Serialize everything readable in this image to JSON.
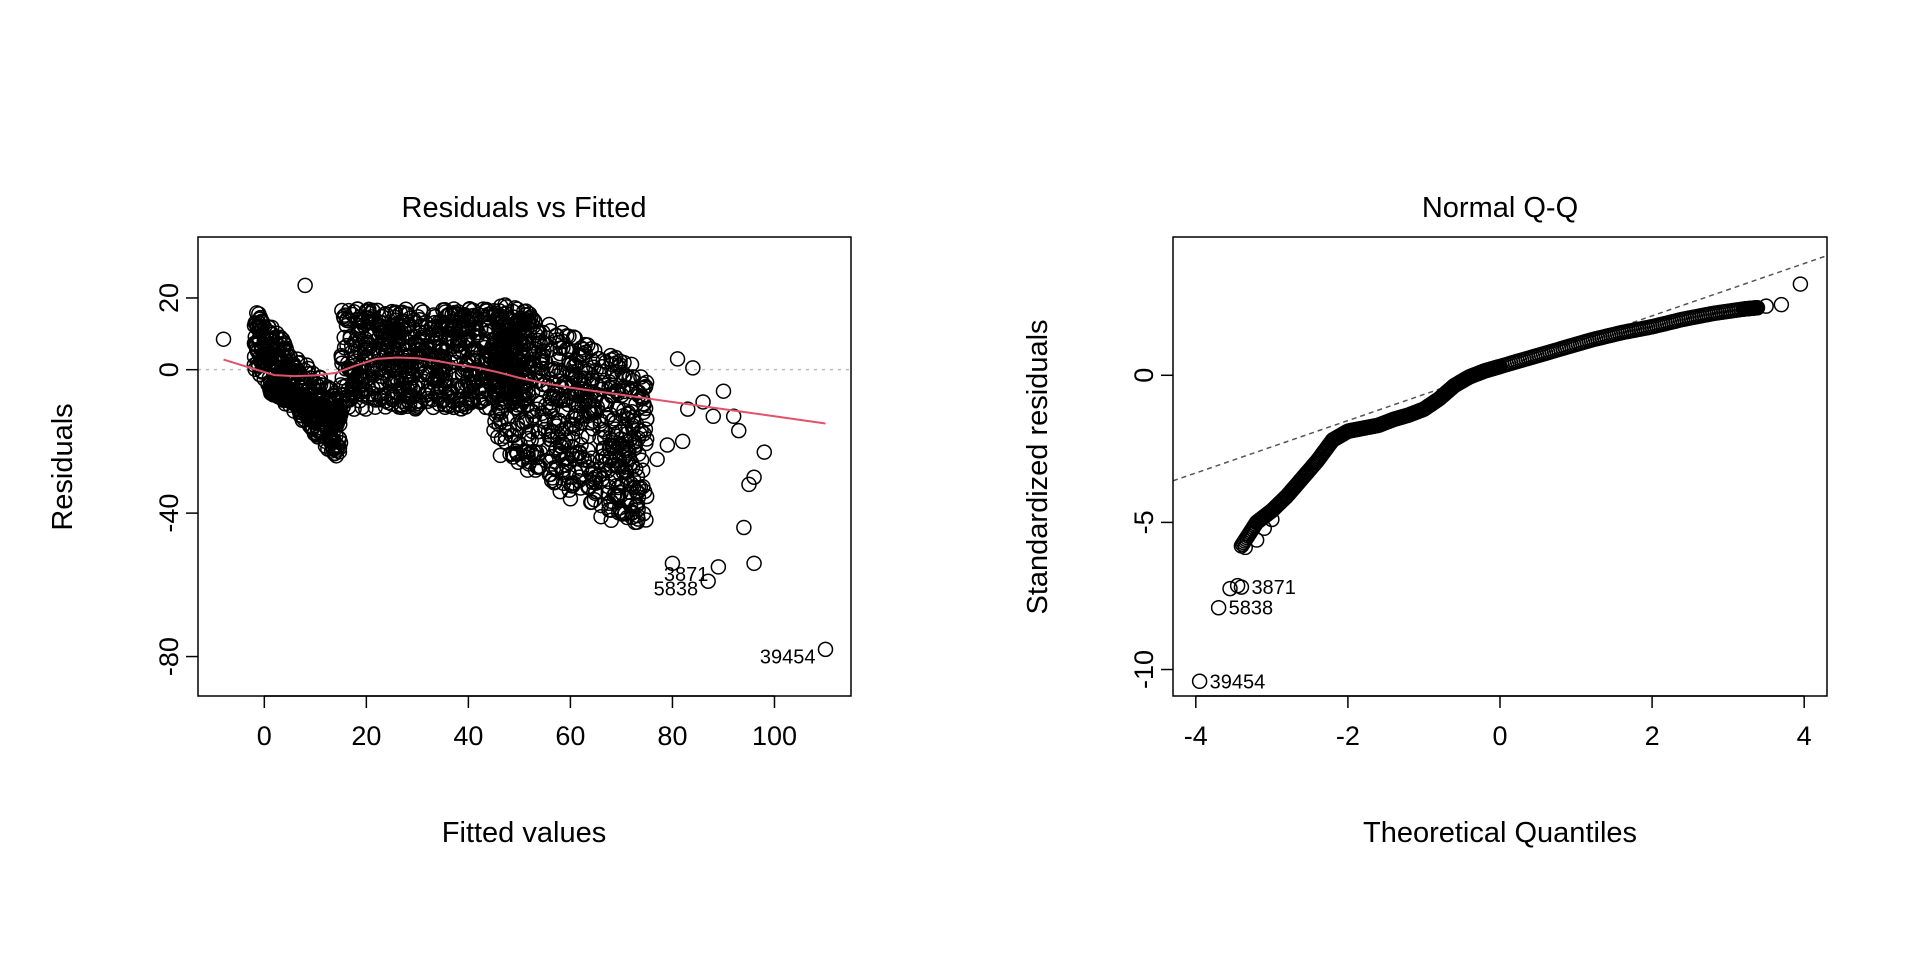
{
  "chart_data": [
    {
      "type": "scatter",
      "title": "Residuals vs Fitted",
      "xlabel": "Fitted values",
      "ylabel": "Residuals",
      "xlim": [
        -13,
        115
      ],
      "ylim": [
        -91,
        37
      ],
      "xticks": [
        0,
        20,
        40,
        60,
        80,
        100
      ],
      "yticks": [
        -80,
        -40,
        0,
        20
      ],
      "reference_line": {
        "y": 0,
        "style": "dotted",
        "color": "#bbbbbb"
      },
      "smoother": {
        "color": "#DF536B",
        "x": [
          -8,
          -2,
          2,
          6,
          10,
          14,
          18,
          22,
          26,
          30,
          34,
          38,
          42,
          46,
          50,
          55,
          60,
          65,
          70,
          80,
          90,
          100,
          110
        ],
        "y": [
          2.8,
          0.2,
          -1.5,
          -1.8,
          -1.6,
          -0.9,
          1.2,
          3.0,
          3.4,
          3.2,
          2.4,
          1.4,
          0.5,
          -0.8,
          -2.3,
          -3.8,
          -5.0,
          -6.0,
          -7.0,
          -9.0,
          -11.0,
          -13.0,
          -15.0
        ]
      },
      "labeled_points": [
        {
          "label": "39454",
          "x": 110,
          "y": -78
        },
        {
          "label": "3871",
          "x": 89,
          "y": -55
        },
        {
          "label": "5838",
          "x": 87,
          "y": -59
        }
      ],
      "outliers": [
        [
          -8,
          8.5
        ],
        [
          8,
          23.5
        ],
        [
          -1,
          12
        ],
        [
          81,
          3
        ],
        [
          84,
          0.5
        ],
        [
          90,
          -6
        ],
        [
          93,
          -17
        ],
        [
          96,
          -30
        ],
        [
          95,
          -32
        ],
        [
          98,
          -23
        ],
        [
          94,
          -44
        ],
        [
          96,
          -54
        ],
        [
          80,
          -54
        ],
        [
          82,
          -20
        ],
        [
          79,
          -21
        ],
        [
          83,
          -11
        ],
        [
          88,
          -13
        ],
        [
          92,
          -13
        ],
        [
          86,
          -9
        ],
        [
          77,
          -25
        ],
        [
          73,
          -34
        ],
        [
          71,
          -30
        ],
        [
          68,
          -42
        ],
        [
          66,
          -41
        ],
        [
          64,
          -37
        ],
        [
          65,
          -34
        ],
        [
          62,
          -33
        ],
        [
          60,
          -36
        ],
        [
          58,
          -34
        ],
        [
          72,
          -26
        ]
      ],
      "series": [
        {
          "name": "",
          "x_range": [
            -2,
            15
          ],
          "slope": -1.5,
          "intercept": 5.5,
          "spread": 9
        },
        {
          "name": "",
          "x_range": [
            1,
            15
          ],
          "slope": -0.55,
          "intercept": -5,
          "spread": 1.2
        },
        {
          "name": "",
          "x_range": [
            15,
            52
          ],
          "slope": 0,
          "intercept": 3,
          "spread": 14
        },
        {
          "name": "",
          "x_range": [
            45,
            75
          ],
          "slope": -0.7,
          "intercept": 30,
          "spread": 22
        }
      ]
    },
    {
      "type": "scatter",
      "title": "Normal Q-Q",
      "xlabel": "Theoretical Quantiles",
      "ylabel": "Standardized residuals",
      "xlim": [
        -4.3,
        4.3
      ],
      "ylim": [
        -10.9,
        4.7
      ],
      "xticks": [
        -4,
        -2,
        0,
        2,
        4
      ],
      "yticks": [
        -10,
        -5,
        0
      ],
      "reference_line": {
        "intercept": 0.24,
        "slope": 0.89,
        "style": "dashed",
        "color": "#555555"
      },
      "qq_curve": {
        "x": [
          -3.4,
          -3.2,
          -3.0,
          -2.8,
          -2.6,
          -2.4,
          -2.2,
          -2.0,
          -1.8,
          -1.6,
          -1.4,
          -1.2,
          -1.0,
          -0.8,
          -0.6,
          -0.4,
          -0.2,
          0.0,
          0.4,
          0.8,
          1.2,
          1.6,
          2.0,
          2.4,
          2.8,
          3.2,
          3.4
        ],
        "y": [
          -5.8,
          -5.0,
          -4.6,
          -4.1,
          -3.5,
          -2.9,
          -2.2,
          -1.9,
          -1.8,
          -1.7,
          -1.5,
          -1.35,
          -1.15,
          -0.8,
          -0.35,
          -0.05,
          0.15,
          0.3,
          0.6,
          0.9,
          1.2,
          1.45,
          1.65,
          1.9,
          2.1,
          2.25,
          2.3
        ]
      },
      "labeled_points": [
        {
          "label": "39454",
          "x": -3.95,
          "y": -10.4
        },
        {
          "label": "5838",
          "x": -3.7,
          "y": -7.9
        },
        {
          "label": "3871",
          "x": -3.4,
          "y": -7.2
        }
      ],
      "extra_points": [
        [
          -3.55,
          -7.25
        ],
        [
          -3.45,
          -7.15
        ],
        [
          -3.2,
          -5.6
        ],
        [
          -3.1,
          -5.2
        ],
        [
          -3.35,
          -5.85
        ],
        [
          -3.0,
          -4.9
        ],
        [
          3.5,
          2.35
        ],
        [
          3.7,
          2.4
        ],
        [
          3.95,
          3.1
        ]
      ]
    }
  ]
}
